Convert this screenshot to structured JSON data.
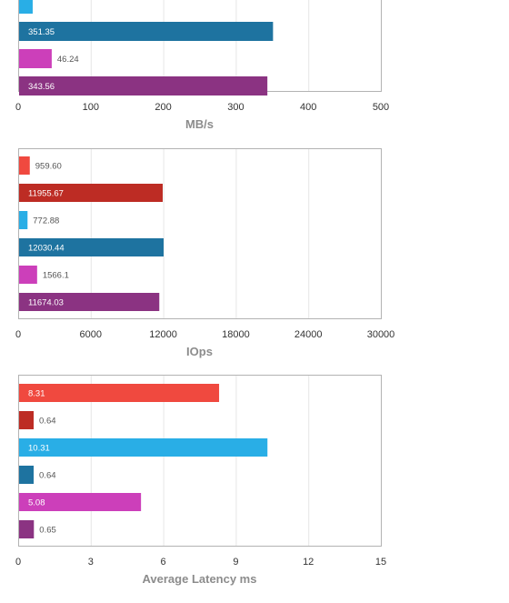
{
  "chart_data": [
    {
      "type": "bar",
      "orientation": "horizontal",
      "xlabel": "MB/s",
      "xlim": [
        0,
        500
      ],
      "ticks": [
        0,
        100,
        200,
        300,
        400,
        500
      ],
      "grid": true,
      "bars": [
        {
          "value": 20,
          "label": "",
          "color": "#29aee6"
        },
        {
          "value": 351.35,
          "label": "351.35",
          "color": "#1e73a0"
        },
        {
          "value": 46.24,
          "label": "46.24",
          "color": "#cc3fba"
        },
        {
          "value": 343.56,
          "label": "343.56",
          "color": "#8b3382"
        }
      ]
    },
    {
      "type": "bar",
      "orientation": "horizontal",
      "xlabel": "IOps",
      "xlim": [
        0,
        30000
      ],
      "ticks": [
        0,
        6000,
        12000,
        18000,
        24000,
        30000
      ],
      "grid": true,
      "bars": [
        {
          "value": 959.6,
          "label": "959.60",
          "color": "#f0493f"
        },
        {
          "value": 11955.67,
          "label": "11955.67",
          "color": "#bd2c24"
        },
        {
          "value": 772.88,
          "label": "772.88",
          "color": "#29aee6"
        },
        {
          "value": 12030.44,
          "label": "12030.44",
          "color": "#1e73a0"
        },
        {
          "value": 1566.1,
          "label": "1566.1",
          "color": "#cc3fba"
        },
        {
          "value": 11674.03,
          "label": "11674.03",
          "color": "#8b3382"
        }
      ]
    },
    {
      "type": "bar",
      "orientation": "horizontal",
      "xlabel": "Average Latency ms",
      "xlim": [
        0,
        15
      ],
      "ticks": [
        0,
        3,
        6,
        9,
        12,
        15
      ],
      "grid": true,
      "bars": [
        {
          "value": 8.31,
          "label": "8.31",
          "color": "#f0493f"
        },
        {
          "value": 0.64,
          "label": "0.64",
          "color": "#bd2c24"
        },
        {
          "value": 10.31,
          "label": "10.31",
          "color": "#29aee6"
        },
        {
          "value": 0.64,
          "label": "0.64",
          "color": "#1e73a0"
        },
        {
          "value": 5.08,
          "label": "5.08",
          "color": "#cc3fba"
        },
        {
          "value": 0.65,
          "label": "0.65",
          "color": "#8b3382"
        }
      ]
    }
  ]
}
